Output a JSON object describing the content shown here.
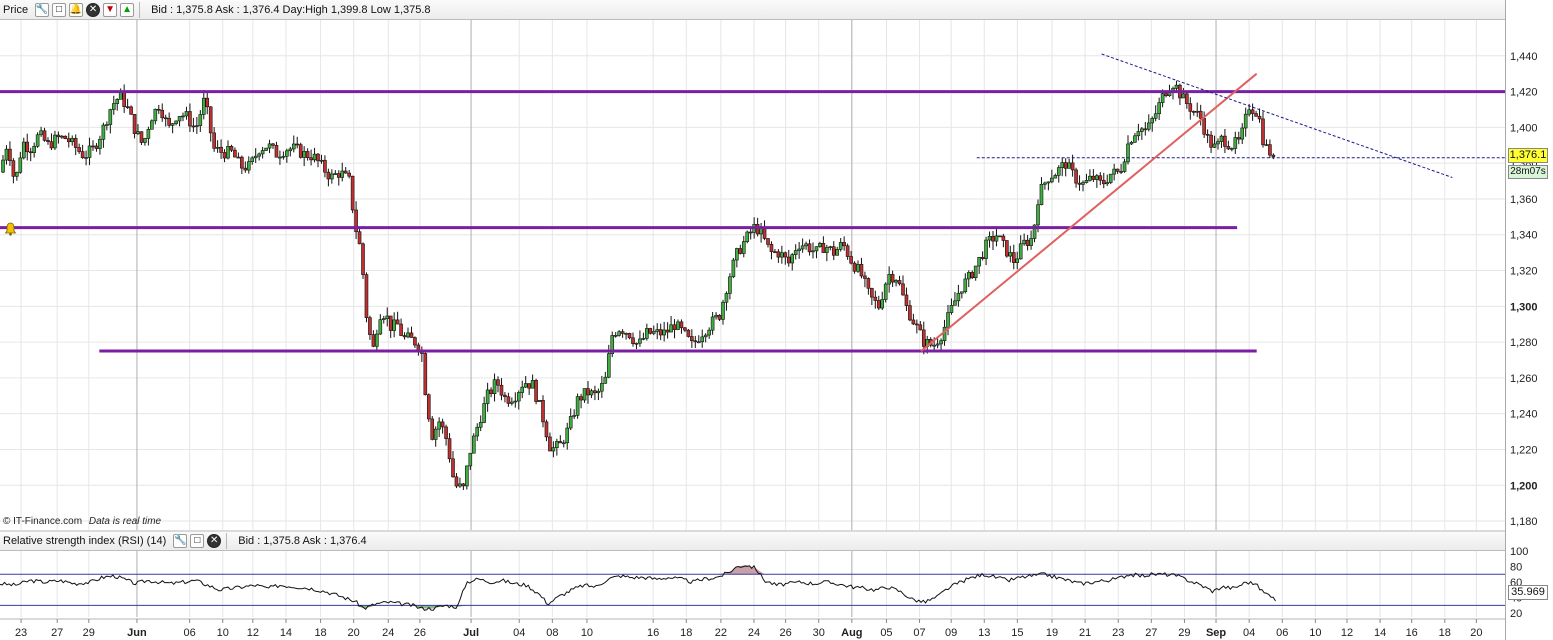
{
  "price_panel": {
    "title": "Price",
    "info": "Bid : 1,375.8  Ask : 1,376.4  Day:High 1,399.8  Low 1,375.8",
    "tools": [
      "wrench-icon",
      "window-icon",
      "bell-icon",
      "close-icon",
      "down-arrow-icon",
      "up-arrow-icon"
    ],
    "current_price": "1,376.1",
    "timer": "28m07s",
    "watermark_logo": "© IT-Finance.com",
    "watermark_text": "Data is real time"
  },
  "rsi_panel": {
    "title": "Relative strength index (RSI) (14)",
    "info": "Bid : 1,375.8  Ask : 1,376.4",
    "current_value": "35.969",
    "tools": [
      "wrench-icon",
      "window-icon",
      "close-icon"
    ]
  },
  "colors": {
    "support_resistance": "#7b1fa2",
    "trendline": "#e06060",
    "dashed": "#1a1a8c",
    "rsi_overbought_fill": "#c8a0a8",
    "rsi_oversold_fill": "#88b888",
    "grid": "#e6e6e6",
    "month_line": "#b0b0b0"
  },
  "chart_data": {
    "type": "candlestick",
    "y_range": [
      1175,
      1460
    ],
    "y_ticks": [
      {
        "value": 1440,
        "label": "1,440"
      },
      {
        "value": 1420,
        "label": "1,420"
      },
      {
        "value": 1400,
        "label": "1,400"
      },
      {
        "value": 1380,
        "label": "1,380"
      },
      {
        "value": 1360,
        "label": "1,360"
      },
      {
        "value": 1340,
        "label": "1,340"
      },
      {
        "value": 1320,
        "label": "1,320"
      },
      {
        "value": 1300,
        "label": "1,300",
        "bold": true
      },
      {
        "value": 1280,
        "label": "1,280"
      },
      {
        "value": 1260,
        "label": "1,260"
      },
      {
        "value": 1240,
        "label": "1,240"
      },
      {
        "value": 1220,
        "label": "1,220"
      },
      {
        "value": 1200,
        "label": "1,200",
        "bold": true
      },
      {
        "value": 1180,
        "label": "1,180"
      }
    ],
    "x_ticks": [
      {
        "label": "23",
        "x": 0.014
      },
      {
        "label": "27",
        "x": 0.038
      },
      {
        "label": "29",
        "x": 0.059
      },
      {
        "label": "Jun",
        "x": 0.091,
        "bold": true
      },
      {
        "label": "06",
        "x": 0.126
      },
      {
        "label": "10",
        "x": 0.148
      },
      {
        "label": "12",
        "x": 0.168
      },
      {
        "label": "14",
        "x": 0.19
      },
      {
        "label": "18",
        "x": 0.213
      },
      {
        "label": "20",
        "x": 0.235
      },
      {
        "label": "24",
        "x": 0.258
      },
      {
        "label": "26",
        "x": 0.279
      },
      {
        "label": "Jul",
        "x": 0.313,
        "bold": true
      },
      {
        "label": "04",
        "x": 0.345
      },
      {
        "label": "08",
        "x": 0.367
      },
      {
        "label": "10",
        "x": 0.39
      },
      {
        "label": "16",
        "x": 0.434
      },
      {
        "label": "18",
        "x": 0.456
      },
      {
        "label": "22",
        "x": 0.479
      },
      {
        "label": "24",
        "x": 0.501
      },
      {
        "label": "26",
        "x": 0.522
      },
      {
        "label": "30",
        "x": 0.544
      },
      {
        "label": "Aug",
        "x": 0.566,
        "bold": true
      },
      {
        "label": "05",
        "x": 0.589
      },
      {
        "label": "07",
        "x": 0.611
      },
      {
        "label": "09",
        "x": 0.632
      },
      {
        "label": "13",
        "x": 0.654
      },
      {
        "label": "15",
        "x": 0.676
      },
      {
        "label": "19",
        "x": 0.699
      },
      {
        "label": "21",
        "x": 0.721
      },
      {
        "label": "23",
        "x": 0.743
      },
      {
        "label": "27",
        "x": 0.765
      },
      {
        "label": "29",
        "x": 0.787
      },
      {
        "label": "Sep",
        "x": 0.808,
        "bold": true
      },
      {
        "label": "04",
        "x": 0.83
      },
      {
        "label": "06",
        "x": 0.852
      },
      {
        "label": "10",
        "x": 0.874
      },
      {
        "label": "12",
        "x": 0.895
      },
      {
        "label": "14",
        "x": 0.917
      },
      {
        "label": "16",
        "x": 0.938
      },
      {
        "label": "18",
        "x": 0.96
      },
      {
        "label": "20",
        "x": 0.981
      }
    ],
    "month_separators": [
      0.091,
      0.313,
      0.566,
      0.808
    ],
    "price_path": [
      [
        0.0,
        1375
      ],
      [
        0.005,
        1392
      ],
      [
        0.01,
        1368
      ],
      [
        0.015,
        1392
      ],
      [
        0.02,
        1388
      ],
      [
        0.026,
        1396
      ],
      [
        0.032,
        1390
      ],
      [
        0.038,
        1394
      ],
      [
        0.044,
        1394
      ],
      [
        0.05,
        1389
      ],
      [
        0.056,
        1384
      ],
      [
        0.062,
        1388
      ],
      [
        0.068,
        1398
      ],
      [
        0.074,
        1412
      ],
      [
        0.08,
        1418
      ],
      [
        0.085,
        1410
      ],
      [
        0.09,
        1398
      ],
      [
        0.095,
        1390
      ],
      [
        0.1,
        1405
      ],
      [
        0.106,
        1413
      ],
      [
        0.112,
        1399
      ],
      [
        0.118,
        1408
      ],
      [
        0.124,
        1406
      ],
      [
        0.13,
        1399
      ],
      [
        0.136,
        1416
      ],
      [
        0.142,
        1388
      ],
      [
        0.148,
        1386
      ],
      [
        0.154,
        1386
      ],
      [
        0.16,
        1378
      ],
      [
        0.166,
        1378
      ],
      [
        0.172,
        1388
      ],
      [
        0.178,
        1390
      ],
      [
        0.184,
        1385
      ],
      [
        0.19,
        1388
      ],
      [
        0.196,
        1388
      ],
      [
        0.202,
        1385
      ],
      [
        0.208,
        1384
      ],
      [
        0.214,
        1378
      ],
      [
        0.22,
        1372
      ],
      [
        0.226,
        1375
      ],
      [
        0.232,
        1370
      ],
      [
        0.236,
        1345
      ],
      [
        0.24,
        1330
      ],
      [
        0.244,
        1290
      ],
      [
        0.248,
        1276
      ],
      [
        0.252,
        1296
      ],
      [
        0.256,
        1296
      ],
      [
        0.26,
        1288
      ],
      [
        0.264,
        1290
      ],
      [
        0.268,
        1282
      ],
      [
        0.272,
        1282
      ],
      [
        0.276,
        1280
      ],
      [
        0.28,
        1276
      ],
      [
        0.283,
        1250
      ],
      [
        0.287,
        1228
      ],
      [
        0.292,
        1236
      ],
      [
        0.297,
        1225
      ],
      [
        0.302,
        1200
      ],
      [
        0.308,
        1198
      ],
      [
        0.312,
        1218
      ],
      [
        0.318,
        1235
      ],
      [
        0.324,
        1250
      ],
      [
        0.33,
        1258
      ],
      [
        0.336,
        1248
      ],
      [
        0.342,
        1250
      ],
      [
        0.348,
        1258
      ],
      [
        0.354,
        1256
      ],
      [
        0.36,
        1240
      ],
      [
        0.366,
        1220
      ],
      [
        0.372,
        1222
      ],
      [
        0.378,
        1232
      ],
      [
        0.384,
        1248
      ],
      [
        0.39,
        1252
      ],
      [
        0.396,
        1250
      ],
      [
        0.402,
        1258
      ],
      [
        0.407,
        1285
      ],
      [
        0.412,
        1288
      ],
      [
        0.418,
        1285
      ],
      [
        0.424,
        1278
      ],
      [
        0.43,
        1285
      ],
      [
        0.436,
        1285
      ],
      [
        0.442,
        1285
      ],
      [
        0.448,
        1290
      ],
      [
        0.454,
        1285
      ],
      [
        0.46,
        1278
      ],
      [
        0.466,
        1285
      ],
      [
        0.472,
        1290
      ],
      [
        0.478,
        1295
      ],
      [
        0.484,
        1315
      ],
      [
        0.49,
        1330
      ],
      [
        0.496,
        1338
      ],
      [
        0.502,
        1345
      ],
      [
        0.506,
        1340
      ],
      [
        0.512,
        1330
      ],
      [
        0.518,
        1330
      ],
      [
        0.524,
        1324
      ],
      [
        0.53,
        1335
      ],
      [
        0.536,
        1334
      ],
      [
        0.542,
        1330
      ],
      [
        0.548,
        1334
      ],
      [
        0.554,
        1330
      ],
      [
        0.56,
        1335
      ],
      [
        0.566,
        1325
      ],
      [
        0.572,
        1318
      ],
      [
        0.578,
        1305
      ],
      [
        0.584,
        1300
      ],
      [
        0.59,
        1318
      ],
      [
        0.596,
        1316
      ],
      [
        0.602,
        1300
      ],
      [
        0.608,
        1290
      ],
      [
        0.614,
        1280
      ],
      [
        0.62,
        1278
      ],
      [
        0.626,
        1285
      ],
      [
        0.632,
        1298
      ],
      [
        0.638,
        1310
      ],
      [
        0.644,
        1316
      ],
      [
        0.65,
        1325
      ],
      [
        0.656,
        1335
      ],
      [
        0.662,
        1340
      ],
      [
        0.668,
        1332
      ],
      [
        0.674,
        1325
      ],
      [
        0.68,
        1335
      ],
      [
        0.686,
        1338
      ],
      [
        0.69,
        1362
      ],
      [
        0.696,
        1372
      ],
      [
        0.702,
        1375
      ],
      [
        0.708,
        1380
      ],
      [
        0.714,
        1372
      ],
      [
        0.72,
        1368
      ],
      [
        0.726,
        1372
      ],
      [
        0.732,
        1368
      ],
      [
        0.738,
        1374
      ],
      [
        0.744,
        1375
      ],
      [
        0.75,
        1392
      ],
      [
        0.756,
        1400
      ],
      [
        0.762,
        1398
      ],
      [
        0.768,
        1408
      ],
      [
        0.774,
        1420
      ],
      [
        0.78,
        1425
      ],
      [
        0.786,
        1416
      ],
      [
        0.792,
        1410
      ],
      [
        0.798,
        1405
      ],
      [
        0.803,
        1392
      ],
      [
        0.808,
        1388
      ],
      [
        0.812,
        1394
      ],
      [
        0.818,
        1390
      ],
      [
        0.824,
        1392
      ],
      [
        0.83,
        1412
      ],
      [
        0.836,
        1408
      ],
      [
        0.84,
        1390
      ],
      [
        0.844,
        1386
      ],
      [
        0.848,
        1376
      ]
    ],
    "horizontal_levels": [
      {
        "value": 1420,
        "from": 0.0,
        "to": 1.0,
        "style": "solid"
      },
      {
        "value": 1344,
        "from": 0.0,
        "to": 0.822,
        "style": "solid"
      },
      {
        "value": 1275,
        "from": 0.066,
        "to": 0.835,
        "style": "solid"
      },
      {
        "value": 1383,
        "from": 0.649,
        "to": 1.0,
        "style": "dashed"
      }
    ],
    "trendlines": [
      {
        "from": [
          0.612,
          1275
        ],
        "to": [
          0.835,
          1430
        ],
        "style": "solid"
      },
      {
        "from": [
          0.732,
          1441
        ],
        "to": [
          0.965,
          1372
        ],
        "style": "dashed"
      }
    ],
    "rsi": {
      "y_range": [
        15,
        100
      ],
      "y_ticks": [
        {
          "value": 100,
          "label": "100"
        },
        {
          "value": 80,
          "label": "80"
        },
        {
          "value": 60,
          "label": "60"
        },
        {
          "value": 40,
          "label": "40"
        },
        {
          "value": 20,
          "label": "20"
        }
      ],
      "overbought": 70,
      "oversold": 30,
      "path": [
        [
          0.0,
          58
        ],
        [
          0.01,
          56
        ],
        [
          0.02,
          62
        ],
        [
          0.03,
          60
        ],
        [
          0.04,
          62
        ],
        [
          0.05,
          58
        ],
        [
          0.06,
          60
        ],
        [
          0.068,
          66
        ],
        [
          0.076,
          68
        ],
        [
          0.082,
          64
        ],
        [
          0.09,
          58
        ],
        [
          0.098,
          62
        ],
        [
          0.106,
          60
        ],
        [
          0.114,
          58
        ],
        [
          0.122,
          60
        ],
        [
          0.13,
          62
        ],
        [
          0.138,
          56
        ],
        [
          0.146,
          50
        ],
        [
          0.154,
          52
        ],
        [
          0.162,
          54
        ],
        [
          0.17,
          56
        ],
        [
          0.178,
          52
        ],
        [
          0.186,
          56
        ],
        [
          0.196,
          54
        ],
        [
          0.206,
          52
        ],
        [
          0.216,
          48
        ],
        [
          0.226,
          42
        ],
        [
          0.236,
          35
        ],
        [
          0.242,
          26
        ],
        [
          0.25,
          32
        ],
        [
          0.258,
          34
        ],
        [
          0.266,
          32
        ],
        [
          0.274,
          30
        ],
        [
          0.28,
          26
        ],
        [
          0.288,
          26
        ],
        [
          0.296,
          30
        ],
        [
          0.304,
          28
        ],
        [
          0.31,
          60
        ],
        [
          0.318,
          64
        ],
        [
          0.326,
          60
        ],
        [
          0.334,
          62
        ],
        [
          0.342,
          58
        ],
        [
          0.35,
          56
        ],
        [
          0.358,
          45
        ],
        [
          0.364,
          32
        ],
        [
          0.372,
          42
        ],
        [
          0.38,
          50
        ],
        [
          0.388,
          56
        ],
        [
          0.396,
          54
        ],
        [
          0.404,
          64
        ],
        [
          0.412,
          68
        ],
        [
          0.42,
          66
        ],
        [
          0.428,
          66
        ],
        [
          0.436,
          64
        ],
        [
          0.444,
          66
        ],
        [
          0.452,
          64
        ],
        [
          0.46,
          60
        ],
        [
          0.468,
          64
        ],
        [
          0.476,
          66
        ],
        [
          0.484,
          72
        ],
        [
          0.49,
          80
        ],
        [
          0.496,
          82
        ],
        [
          0.502,
          78
        ],
        [
          0.508,
          62
        ],
        [
          0.516,
          56
        ],
        [
          0.524,
          58
        ],
        [
          0.532,
          60
        ],
        [
          0.54,
          58
        ],
        [
          0.548,
          60
        ],
        [
          0.556,
          58
        ],
        [
          0.566,
          54
        ],
        [
          0.574,
          52
        ],
        [
          0.582,
          50
        ],
        [
          0.59,
          54
        ],
        [
          0.598,
          48
        ],
        [
          0.606,
          38
        ],
        [
          0.614,
          34
        ],
        [
          0.622,
          40
        ],
        [
          0.63,
          52
        ],
        [
          0.638,
          60
        ],
        [
          0.646,
          66
        ],
        [
          0.654,
          70
        ],
        [
          0.662,
          66
        ],
        [
          0.67,
          62
        ],
        [
          0.678,
          66
        ],
        [
          0.686,
          68
        ],
        [
          0.694,
          70
        ],
        [
          0.702,
          66
        ],
        [
          0.71,
          62
        ],
        [
          0.718,
          58
        ],
        [
          0.726,
          60
        ],
        [
          0.734,
          62
        ],
        [
          0.742,
          64
        ],
        [
          0.75,
          70
        ],
        [
          0.758,
          68
        ],
        [
          0.766,
          70
        ],
        [
          0.774,
          70
        ],
        [
          0.782,
          68
        ],
        [
          0.79,
          62
        ],
        [
          0.798,
          56
        ],
        [
          0.806,
          48
        ],
        [
          0.812,
          54
        ],
        [
          0.82,
          52
        ],
        [
          0.828,
          60
        ],
        [
          0.834,
          58
        ],
        [
          0.84,
          46
        ],
        [
          0.846,
          42
        ],
        [
          0.848,
          36
        ]
      ]
    }
  }
}
